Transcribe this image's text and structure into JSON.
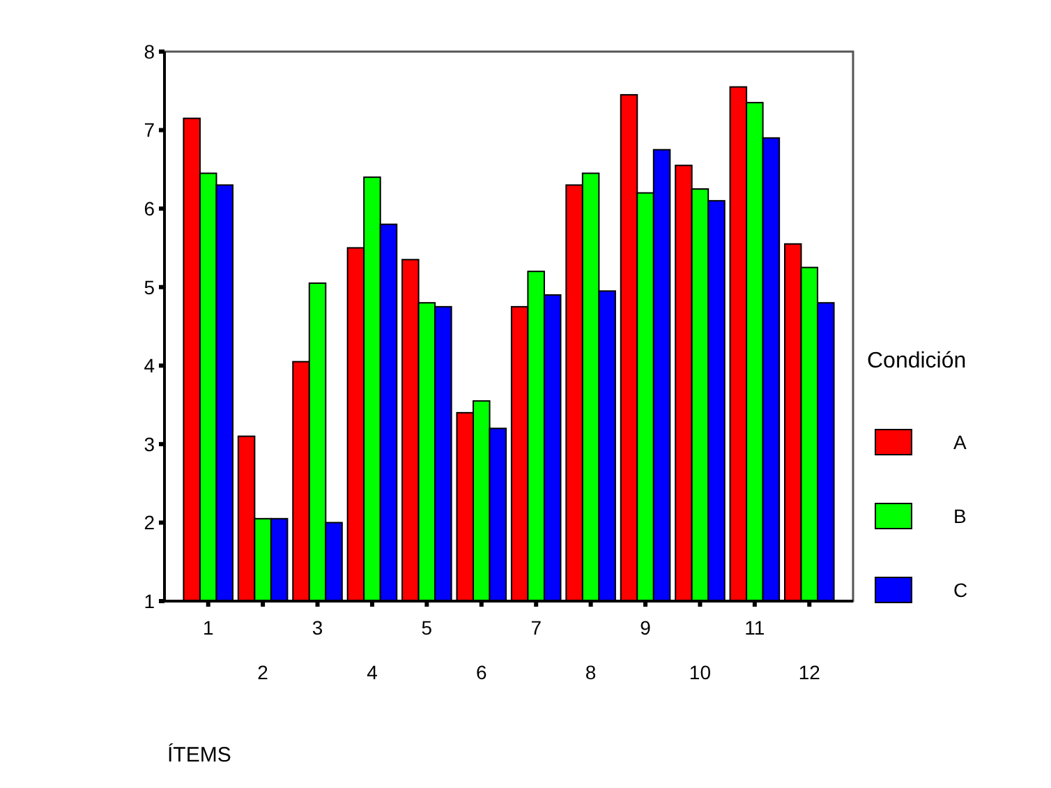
{
  "chart_data": {
    "type": "bar",
    "xlabel": "ÍTEMS",
    "legend_title": "Condición",
    "legend": "right",
    "categories": [
      "1",
      "2",
      "3",
      "4",
      "5",
      "6",
      "7",
      "8",
      "9",
      "10",
      "11",
      "12"
    ],
    "series": [
      {
        "name": "A",
        "color": "#ff0000",
        "values": [
          7.15,
          3.1,
          4.05,
          5.5,
          5.35,
          3.4,
          4.75,
          6.3,
          7.45,
          6.55,
          7.55,
          5.55
        ]
      },
      {
        "name": "B",
        "color": "#00ff00",
        "values": [
          6.45,
          2.05,
          5.05,
          6.4,
          4.8,
          3.55,
          5.2,
          6.45,
          6.2,
          6.25,
          7.35,
          5.25
        ]
      },
      {
        "name": "C",
        "color": "#0000ff",
        "values": [
          6.3,
          2.05,
          2.0,
          5.8,
          4.75,
          3.2,
          4.9,
          4.95,
          6.75,
          6.1,
          6.9,
          4.8
        ]
      }
    ],
    "ylim": [
      1,
      8
    ],
    "yticks": [
      1,
      2,
      3,
      4,
      5,
      6,
      7,
      8
    ],
    "grid": false
  }
}
